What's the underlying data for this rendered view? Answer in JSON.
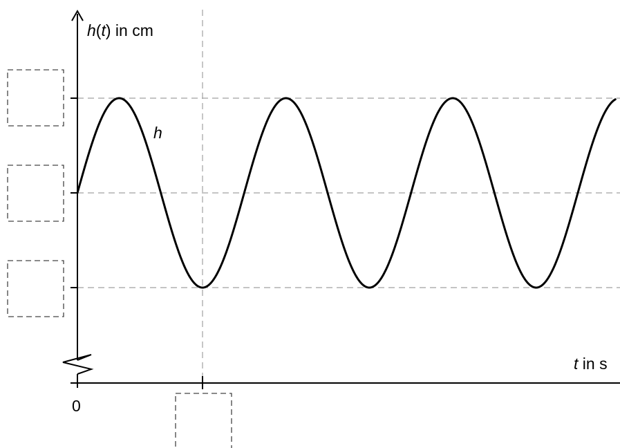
{
  "chart_data": {
    "type": "line",
    "ylabel": {
      "func": "h",
      "arg": "t",
      "unit": "in cm"
    },
    "xlabel": {
      "var": "t",
      "unit": "in s"
    },
    "curve_label": "h",
    "origin_label": "0",
    "y_axis_broken": true,
    "grid": "dashed guide lines at marked ticks",
    "series": [
      {
        "function": "sine",
        "starts_at": "midline",
        "initial_direction": "increasing",
        "minimum_at_marked_tick": 1,
        "x_range": [
          0,
          4.3
        ],
        "y_levels": {
          "max": 1,
          "mid": 0,
          "min": -1
        }
      }
    ],
    "y_ticks": [
      {
        "level": "max",
        "label": ""
      },
      {
        "level": "mid",
        "label": ""
      },
      {
        "level": "min",
        "label": ""
      }
    ],
    "x_ticks": [
      {
        "value": 1,
        "label": ""
      }
    ]
  }
}
